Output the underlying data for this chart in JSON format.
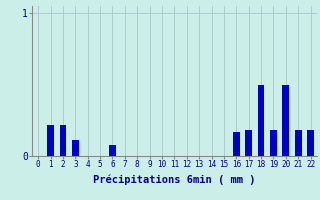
{
  "categories": [
    0,
    1,
    2,
    3,
    4,
    5,
    6,
    7,
    8,
    9,
    10,
    11,
    12,
    13,
    14,
    15,
    16,
    17,
    18,
    19,
    20,
    21,
    22
  ],
  "values": [
    0.0,
    0.22,
    0.22,
    0.11,
    0.0,
    0.0,
    0.08,
    0.0,
    0.0,
    0.0,
    0.0,
    0.0,
    0.0,
    0.0,
    0.0,
    0.0,
    0.17,
    0.18,
    0.5,
    0.18,
    0.5,
    0.18,
    0.18
  ],
  "bar_color": "#0000cc",
  "bg_color": "#cceee8",
  "grid_color": "#aacccc",
  "xlabel": "Précipitations 6min ( mm )",
  "ylim": [
    0,
    1.05
  ],
  "bar_width": 0.55
}
